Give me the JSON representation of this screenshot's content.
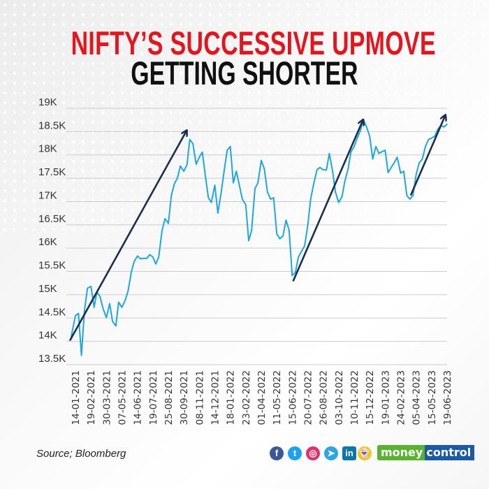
{
  "title": {
    "line1": "NIFTY’S SUCCESSIVE UPMOVE",
    "line2": "GETTING SHORTER"
  },
  "colors": {
    "title_red": "#e3161f",
    "line": "#1ea7dc",
    "arrow": "#1a2e4f",
    "grid": "#cccccc"
  },
  "footer": {
    "source": "Source; Bloomberg",
    "social_icons": [
      "facebook-icon",
      "twitter-icon",
      "instagram-icon",
      "telegram-icon",
      "linkedin-icon",
      "snapchat-icon"
    ],
    "social_glyphs": [
      "f",
      "t",
      "◎",
      "➤",
      "in",
      "👻"
    ],
    "logo_part1": "money",
    "logo_part2": "control"
  },
  "chart_data": {
    "type": "line",
    "title": "NIFTY’S SUCCESSIVE UPMOVE GETTING SHORTER",
    "xlabel": "",
    "ylabel": "",
    "ylim": [
      13500,
      19000
    ],
    "yticks": [
      19000,
      18500,
      18000,
      17500,
      17000,
      16500,
      16000,
      15500,
      15000,
      14500,
      14000,
      13500
    ],
    "ytick_labels": [
      "19K",
      "18.5K",
      "18K",
      "17.5K",
      "17K",
      "16.5K",
      "16K",
      "15.5K",
      "15K",
      "14.5K",
      "14K",
      "13.5K"
    ],
    "xtick_labels": [
      "14-01-2021",
      "19-02-2021",
      "30-03-2021",
      "07-05-2021",
      "14-06-2021",
      "19-07-2021",
      "25-08-2021",
      "30-09-2021",
      "08-11-2021",
      "14-12-2021",
      "18-01-2022",
      "23-02-2022",
      "01-04-2022",
      "11-05-2022",
      "15-06-2022",
      "20-07-2022",
      "26-08-2022",
      "03-10-2022",
      "10-11-2022",
      "15-12-2022",
      "19-01-2023",
      "24-02-2023",
      "05-04-2023",
      "15-05-2023",
      "19-06-2023"
    ],
    "grid": true,
    "series": [
      {
        "x": [
          "04-01-2021",
          "14-01-2021",
          "21-01-2021",
          "28-01-2021",
          "04-02-2021",
          "11-02-2021",
          "19-02-2021",
          "27-02-2021",
          "06-03-2021",
          "14-03-2021",
          "22-03-2021",
          "30-03-2021",
          "07-04-2021",
          "14-04-2021",
          "22-04-2021",
          "29-04-2021",
          "07-05-2021",
          "15-05-2021",
          "22-05-2021",
          "30-05-2021",
          "06-06-2021",
          "14-06-2021",
          "21-06-2021",
          "28-06-2021",
          "05-07-2021",
          "12-07-2021",
          "19-07-2021",
          "26-07-2021",
          "02-08-2021",
          "10-08-2021",
          "17-08-2021",
          "25-08-2021",
          "01-09-2021",
          "08-09-2021",
          "15-09-2021",
          "22-09-2021",
          "30-09-2021",
          "08-10-2021",
          "15-10-2021",
          "23-10-2021",
          "31-10-2021",
          "08-11-2021",
          "15-11-2021",
          "22-11-2021",
          "29-11-2021",
          "06-12-2021",
          "14-12-2021",
          "21-12-2021",
          "28-12-2021",
          "04-01-2022",
          "11-01-2022",
          "18-01-2022",
          "25-01-2022",
          "01-02-2022",
          "08-02-2022",
          "15-02-2022",
          "23-02-2022",
          "02-03-2022",
          "09-03-2022",
          "17-03-2022",
          "24-03-2022",
          "01-04-2022",
          "09-04-2022",
          "17-04-2022",
          "25-04-2022",
          "03-05-2022",
          "11-05-2022",
          "18-05-2022",
          "25-05-2022",
          "01-06-2022",
          "08-06-2022",
          "15-06-2022",
          "22-06-2022",
          "29-06-2022",
          "06-07-2022",
          "13-07-2022",
          "20-07-2022",
          "27-07-2022",
          "03-08-2022",
          "11-08-2022",
          "18-08-2022",
          "26-08-2022",
          "03-09-2022",
          "10-09-2022",
          "18-09-2022",
          "25-09-2022",
          "03-10-2022",
          "11-10-2022",
          "18-10-2022",
          "26-10-2022",
          "02-11-2022",
          "10-11-2022",
          "17-11-2022",
          "24-11-2022",
          "01-12-2022",
          "08-12-2022",
          "15-12-2022",
          "22-12-2022",
          "29-12-2022",
          "05-01-2023",
          "12-01-2023",
          "19-01-2023",
          "26-01-2023",
          "02-02-2023",
          "09-02-2023",
          "16-02-2023",
          "24-02-2023",
          "04-03-2023",
          "12-03-2023",
          "20-03-2023",
          "28-03-2023",
          "05-04-2023",
          "13-04-2023",
          "21-04-2023",
          "29-04-2023",
          "07-05-2023",
          "15-05-2023",
          "22-05-2023",
          "29-05-2023",
          "05-06-2023",
          "12-06-2023",
          "19-06-2023"
        ],
        "values": [
          14090,
          14550,
          14600,
          13700,
          14660,
          15140,
          15180,
          14730,
          15060,
          14960,
          14690,
          14510,
          14810,
          14430,
          14330,
          14840,
          14730,
          14880,
          15080,
          15480,
          15710,
          15830,
          15770,
          15780,
          15780,
          15860,
          15810,
          15660,
          15810,
          16380,
          16630,
          16530,
          17130,
          17380,
          17500,
          17760,
          17650,
          17790,
          18330,
          18240,
          17800,
          17950,
          18060,
          17550,
          17080,
          16980,
          17350,
          16750,
          17170,
          17650,
          18100,
          18180,
          17400,
          17650,
          17350,
          17050,
          16930,
          16160,
          16380,
          17280,
          17400,
          17880,
          17700,
          17200,
          17050,
          17080,
          16310,
          16200,
          16260,
          16600,
          16380,
          15410,
          15480,
          15810,
          15930,
          16050,
          16480,
          17050,
          17370,
          17680,
          17730,
          17680,
          17680,
          18030,
          17650,
          17200,
          16980,
          17100,
          17430,
          17700,
          18060,
          18180,
          18360,
          18520,
          18750,
          18600,
          18400,
          17910,
          18180,
          18030,
          18070,
          18100,
          17620,
          17730,
          17830,
          17950,
          17610,
          17650,
          17130,
          17050,
          17130,
          17580,
          17830,
          17910,
          18180,
          18330,
          18360,
          18400,
          18550,
          18630,
          18600,
          18660
        ]
      }
    ],
    "annotations": [
      {
        "type": "arrow",
        "from": [
          "01-01-2021",
          14015
        ],
        "to": [
          "07-10-2021",
          18520
        ]
      },
      {
        "type": "arrow",
        "from": [
          "17-06-2022",
          15290
        ],
        "to": [
          "30-11-2022",
          18750
        ]
      },
      {
        "type": "arrow",
        "from": [
          "22-03-2023",
          17130
        ],
        "to": [
          "15-06-2023",
          18850
        ]
      }
    ]
  }
}
